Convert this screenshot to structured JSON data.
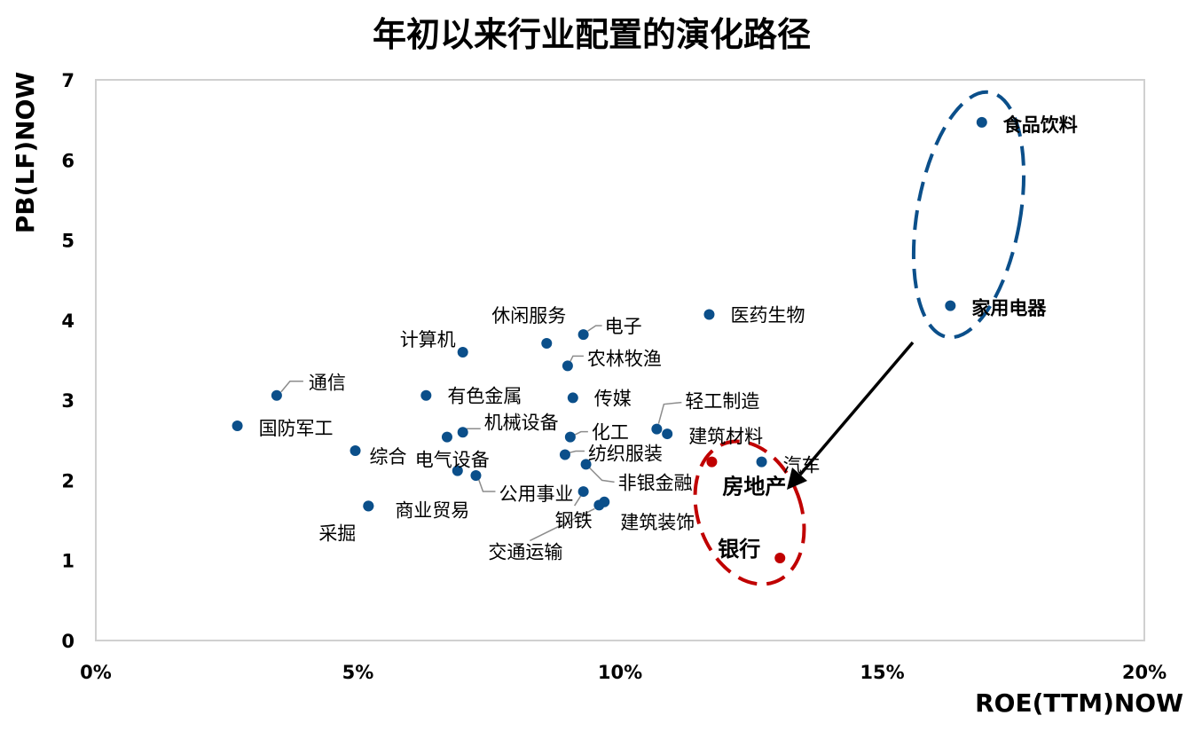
{
  "chart_data": {
    "type": "scatter",
    "title": "年初以来行业配置的演化路径",
    "xlabel": "ROE(TTM)NOW",
    "ylabel": "PB(LF)NOW",
    "xlim": [
      0,
      20
    ],
    "ylim": [
      0,
      7
    ],
    "x_ticks": [
      "0%",
      "5%",
      "10%",
      "15%",
      "20%"
    ],
    "y_ticks": [
      "0",
      "1",
      "2",
      "3",
      "4",
      "5",
      "6",
      "7"
    ],
    "grid": false,
    "colors": {
      "point": "#0b4f8a",
      "highlight": "#c00000",
      "ellipse_blue": "#0b4f8a",
      "ellipse_red": "#c00000",
      "arrow": "#000000",
      "frame": "#d0d0d0"
    },
    "points": [
      {
        "label": "食品饮料",
        "x": 16.9,
        "y": 6.47,
        "emph": "bold"
      },
      {
        "label": "家用电器",
        "x": 16.3,
        "y": 4.18,
        "emph": "bold"
      },
      {
        "label": "医药生物",
        "x": 11.7,
        "y": 4.07
      },
      {
        "label": "电子",
        "x": 9.3,
        "y": 3.82
      },
      {
        "label": "休闲服务",
        "x": 8.6,
        "y": 3.71
      },
      {
        "label": "计算机",
        "x": 7.0,
        "y": 3.6
      },
      {
        "label": "农林牧渔",
        "x": 9.0,
        "y": 3.43
      },
      {
        "label": "通信",
        "x": 3.45,
        "y": 3.06
      },
      {
        "label": "有色金属",
        "x": 6.3,
        "y": 3.06
      },
      {
        "label": "传媒",
        "x": 9.1,
        "y": 3.03
      },
      {
        "label": "国防军工",
        "x": 2.7,
        "y": 2.68
      },
      {
        "label": "轻工制造",
        "x": 10.7,
        "y": 2.64
      },
      {
        "label": "机械设备",
        "x": 7.0,
        "y": 2.6
      },
      {
        "label": "建筑材料",
        "x": 10.9,
        "y": 2.58
      },
      {
        "label": "化工",
        "x": 9.05,
        "y": 2.54
      },
      {
        "label": "",
        "x": 6.7,
        "y": 2.54
      },
      {
        "label": "综合",
        "x": 4.95,
        "y": 2.37
      },
      {
        "label": "纺织服装",
        "x": 8.95,
        "y": 2.32
      },
      {
        "label": "汽车",
        "x": 12.7,
        "y": 2.23
      },
      {
        "label": "非银金融",
        "x": 9.35,
        "y": 2.2
      },
      {
        "label": "电气设备",
        "x": 6.9,
        "y": 2.12
      },
      {
        "label": "公用事业",
        "x": 7.25,
        "y": 2.06
      },
      {
        "label": "钢铁",
        "x": 9.3,
        "y": 1.86
      },
      {
        "label": "建筑装饰",
        "x": 9.7,
        "y": 1.73
      },
      {
        "label": "交通运输",
        "x": 9.6,
        "y": 1.69
      },
      {
        "label": "商业贸易",
        "x": 5.2,
        "y": 1.68
      },
      {
        "label": "采掘",
        "x": 5.2,
        "y": 1.68
      },
      {
        "label": "房地产",
        "x": 11.75,
        "y": 2.23,
        "emph": "highlight"
      },
      {
        "label": "银行",
        "x": 13.05,
        "y": 1.03,
        "emph": "highlight"
      }
    ]
  }
}
